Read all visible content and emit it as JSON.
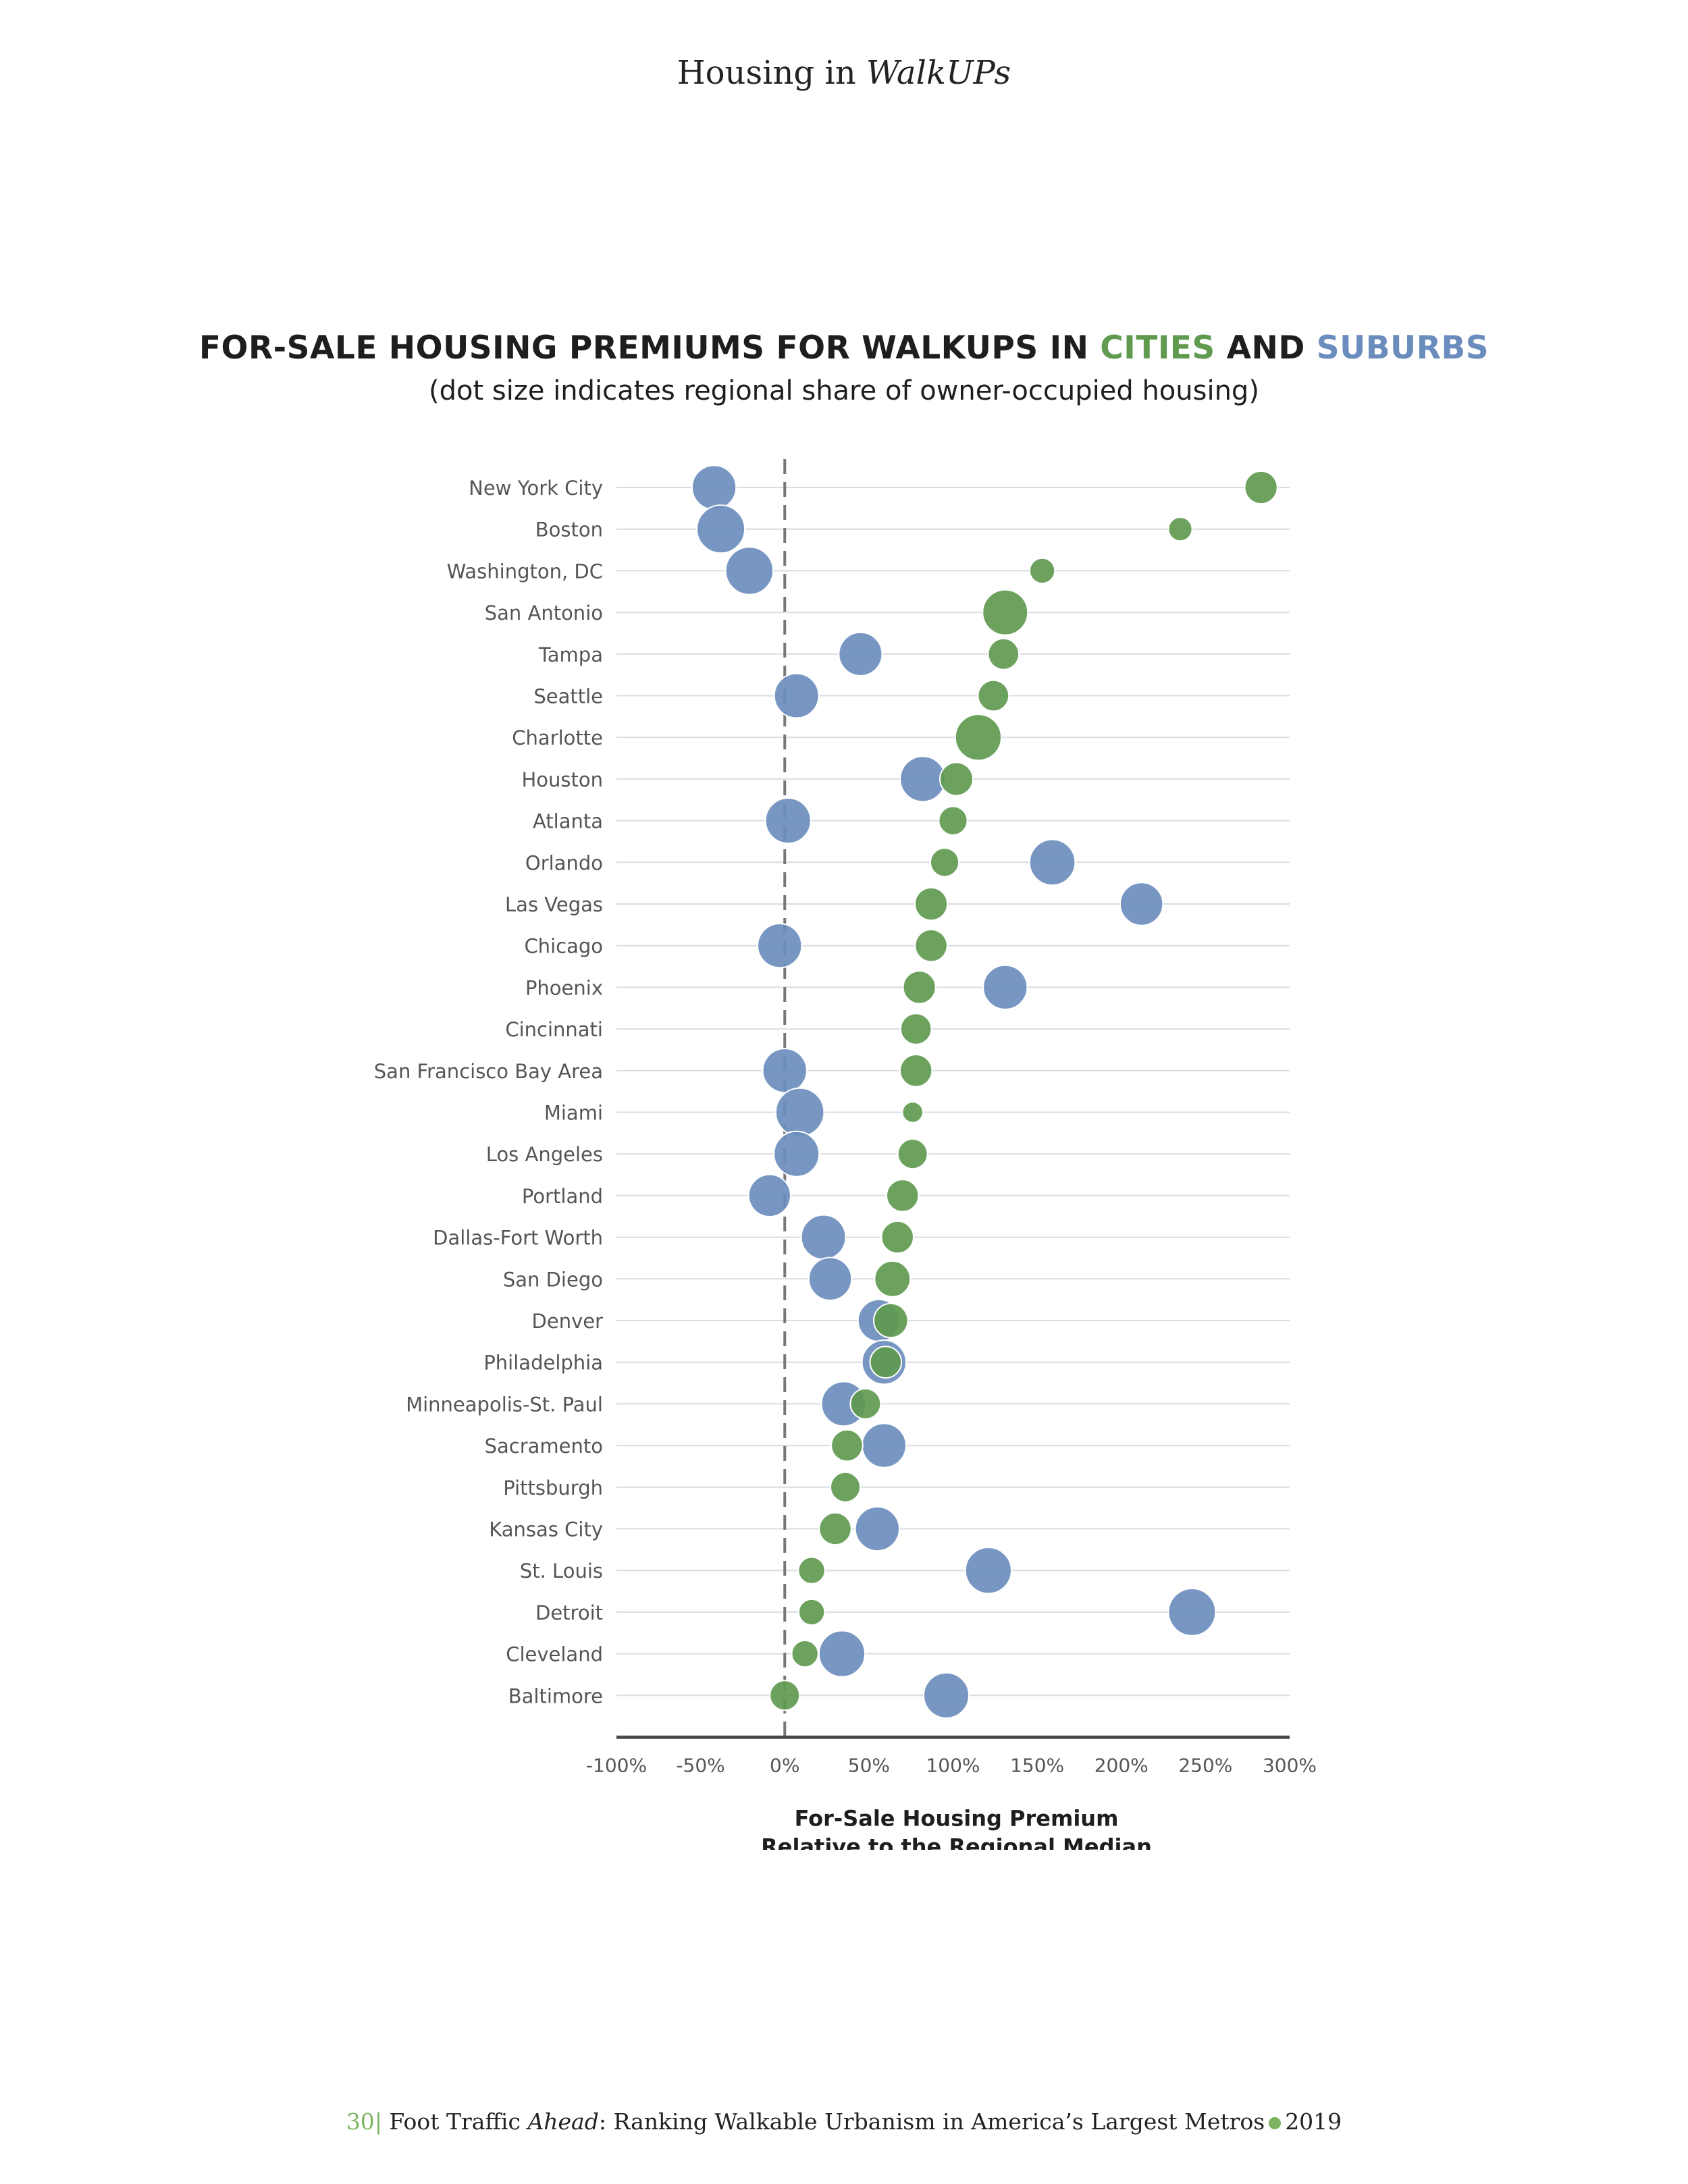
{
  "header": {
    "prefix": "Housing in ",
    "emph": "WalkUPs"
  },
  "title": {
    "part1": "FOR-SALE HOUSING PREMIUMS FOR WALKUPS IN ",
    "cities": "CITIES",
    "and": " AND ",
    "suburbs": "SUBURBS",
    "subtitle": "(dot size indicates regional share of owner-occupied housing)"
  },
  "colors": {
    "cities": "#5f9a4f",
    "suburbs": "#6b8dbd",
    "grid": "#d9dce0",
    "axis": "#4a4a4a",
    "zero_line": "#777777"
  },
  "chart_data": {
    "type": "scatter",
    "title": "FOR-SALE HOUSING PREMIUMS FOR WALKUPS IN CITIES AND SUBURBS",
    "subtitle": "(dot size indicates regional share of owner-occupied housing)",
    "xlabel": "For-Sale Housing Premium\nRelative to the Regional Median",
    "xlabel_lines": [
      "For-Sale Housing Premium",
      "Relative to the Regional Median"
    ],
    "ylabel": "",
    "xlim": [
      -100,
      300
    ],
    "xticks": [
      "-100%",
      "-50%",
      "0%",
      "50%",
      "100%",
      "150%",
      "200%",
      "250%",
      "300%"
    ],
    "xtick_values": [
      -100,
      -50,
      0,
      50,
      100,
      150,
      200,
      250,
      300
    ],
    "reference_line": 0,
    "grid": true,
    "categories": [
      "New York City",
      "Boston",
      "Washington, DC",
      "San Antonio",
      "Tampa",
      "Seattle",
      "Charlotte",
      "Houston",
      "Atlanta",
      "Orlando",
      "Las Vegas",
      "Chicago",
      "Phoenix",
      "Cincinnati",
      "San Francisco Bay Area",
      "Miami",
      "Los Angeles",
      "Portland",
      "Dallas-Fort Worth",
      "San Diego",
      "Denver",
      "Philadelphia",
      "Minneapolis-St. Paul",
      "Sacramento",
      "Pittsburgh",
      "Kansas City",
      "St. Louis",
      "Detroit",
      "Cleveland",
      "Baltimore"
    ],
    "series": [
      {
        "name": "Suburbs",
        "values": [
          -42,
          -38,
          -21,
          null,
          45,
          7,
          null,
          82,
          2,
          159,
          212,
          -3,
          131,
          null,
          0,
          9,
          7,
          -9,
          23,
          27,
          56,
          59,
          35,
          59,
          null,
          55,
          121,
          242,
          34,
          96
        ],
        "share": [
          0.55,
          0.65,
          0.64,
          null,
          0.53,
          0.56,
          null,
          0.58,
          0.58,
          0.59,
          0.52,
          0.55,
          0.55,
          null,
          0.55,
          0.66,
          0.58,
          0.5,
          0.56,
          0.52,
          0.5,
          0.55,
          0.56,
          0.55,
          null,
          0.55,
          0.6,
          0.63,
          0.6,
          0.58
        ]
      },
      {
        "name": "Cities",
        "values": [
          283,
          235,
          153,
          131,
          130,
          124,
          115,
          102,
          100,
          95,
          87,
          87,
          80,
          78,
          78,
          76,
          76,
          70,
          67,
          64,
          63,
          60,
          48,
          37,
          36,
          30,
          16,
          16,
          12,
          0
        ],
        "share": [
          0.3,
          0.16,
          0.18,
          0.58,
          0.27,
          0.27,
          0.6,
          0.31,
          0.23,
          0.23,
          0.3,
          0.29,
          0.3,
          0.27,
          0.29,
          0.12,
          0.25,
          0.29,
          0.29,
          0.36,
          0.33,
          0.28,
          0.26,
          0.28,
          0.25,
          0.29,
          0.2,
          0.19,
          0.2,
          0.25
        ]
      }
    ]
  },
  "footer": {
    "page": "30",
    "sep": "| ",
    "text1": "Foot Traffic ",
    "ital": "Ahead",
    "text2": ": Ranking Walkable Urbanism in America’s Largest Metros",
    "year": "2019"
  }
}
